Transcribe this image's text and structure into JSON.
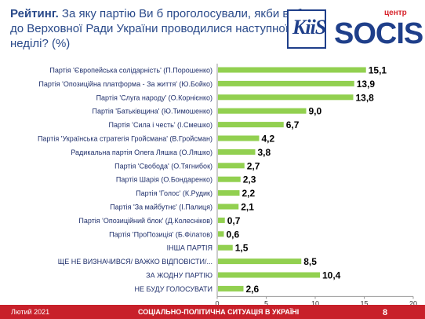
{
  "header": {
    "title_bold": "Рейтинг.",
    "title_rest": " За яку партію Ви б проголосували, якби вибори до Верховної Ради України проводилися наступної неділі? (%)"
  },
  "logos": {
    "kiis": "KiiS",
    "socis_small": "центр",
    "socis": "SOCIS"
  },
  "footer": {
    "date": "Лютий 2021",
    "center": "СОЦІАЛЬНО-ПОЛІТИЧНА СИТУАЦІЯ В УКРАЇНІ",
    "page": "8"
  },
  "colors": {
    "bar": "#92d050",
    "brand_blue": "#1f3f8a",
    "brand_red": "#c8202a",
    "label_text": "#1f2f6b"
  },
  "chart_data": {
    "type": "bar",
    "orientation": "horizontal",
    "categories": [
      "Партія 'Європейська солідарність' (П.Порошенко)",
      "Партія 'Опозиційна платформа - За життя' (Ю.Бойко)",
      "Партія 'Слуга народу' (О.Корнієнко)",
      "Партія 'Батьківщина' (Ю.Тимошенко)",
      "Партія 'Сила і честь' (І.Смешко)",
      "Партія 'Українська стратегія Гройсмана' (В.Гройсман)",
      "Радикальна партія Олега Ляшка (О.Ляшко)",
      "Партія 'Свобода' (О.Тягнибок)",
      "Партія Шарія (О.Бондаренко)",
      "Партія 'Голос' (К.Рудик)",
      "Партія 'За майбутнє' (І.Палиця)",
      "Партія 'Опозиційний блок' (Д.Колесніков)",
      "Партія 'ПроПозиція' (Б.Філатов)",
      "ІНША ПАРТІЯ",
      "ЩЕ НЕ ВИЗНАЧИВСЯ/ ВАЖКО ВІДПОВІСТИ/...",
      "ЗА ЖОДНУ ПАРТІЮ",
      "НЕ БУДУ ГОЛОСУВАТИ"
    ],
    "values": [
      15.1,
      13.9,
      13.8,
      9.0,
      6.7,
      4.2,
      3.8,
      2.7,
      2.3,
      2.2,
      2.1,
      0.7,
      0.6,
      1.5,
      8.5,
      10.4,
      2.6
    ],
    "value_labels": [
      "15,1",
      "13,9",
      "13,8",
      "9,0",
      "6,7",
      "4,2",
      "3,8",
      "2,7",
      "2,3",
      "2,2",
      "2,1",
      "0,7",
      "0,6",
      "1,5",
      "8,5",
      "10,4",
      "2,6"
    ],
    "xlim": [
      0,
      20
    ],
    "xticks": [
      "0",
      "5",
      "10",
      "15",
      "20"
    ],
    "grid": false,
    "legend": "none"
  }
}
